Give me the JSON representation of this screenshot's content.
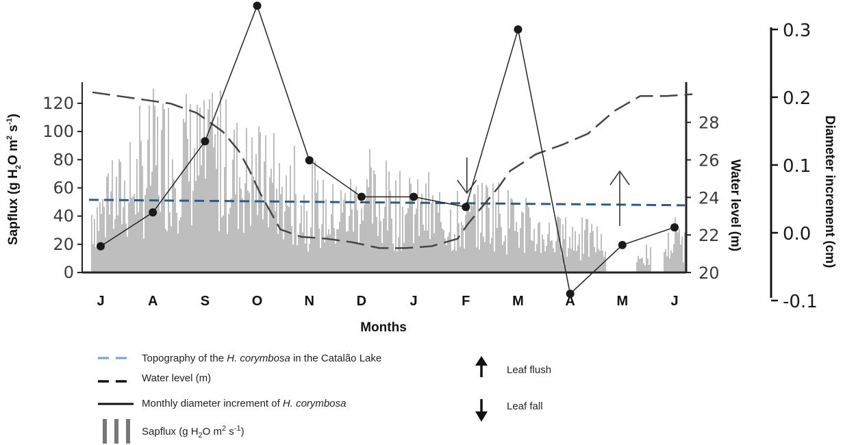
{
  "chart_data": {
    "type": "bar",
    "xlabel": "Months",
    "months": [
      "J",
      "A",
      "S",
      "O",
      "N",
      "D",
      "J",
      "F",
      "M",
      "A",
      "M",
      "J"
    ],
    "sapflux_axis": {
      "label_main": "Sapflux",
      "label_unit_pre": "(g H",
      "label_unit_sub": "2",
      "label_unit_mid": "O m",
      "label_unit_sup1": "2",
      "label_unit_s": " s",
      "label_unit_sup2": "-1",
      "label_unit_post": ")",
      "ticks": [
        "0",
        "20",
        "40",
        "60",
        "80",
        "100",
        "120"
      ],
      "ylim": [
        0,
        135
      ]
    },
    "water_axis": {
      "label": "Water level (m)",
      "ticks": [
        "20",
        "22",
        "24",
        "26",
        "28"
      ],
      "ylim": [
        20,
        29.8
      ]
    },
    "diameter_axis": {
      "label": "Diameter increment (cm)",
      "ticks": [
        "0.3",
        "0.2",
        "0.1",
        "0.0",
        "-0.1"
      ],
      "ylim": [
        -0.1,
        0.3
      ]
    },
    "sapflux_monthly_envelope": {
      "x": [
        0,
        0.8,
        1,
        1.5,
        2,
        2.5,
        3,
        3.5,
        4,
        4.5,
        5,
        5.5,
        6,
        6.5,
        7,
        7.5,
        8,
        8.5,
        9,
        9.5,
        10,
        10.5,
        11
      ],
      "y": [
        55,
        85,
        105,
        110,
        100,
        95,
        85,
        70,
        58,
        52,
        65,
        60,
        55,
        50,
        45,
        60,
        42,
        35,
        32,
        30,
        3,
        15,
        28
      ]
    },
    "water_level_series": {
      "name": "Water level (m)",
      "x": [
        0,
        0.5,
        1,
        1.5,
        2,
        2.5,
        2.8,
        3,
        3.2,
        3.4,
        3.6,
        4,
        4.5,
        5,
        5.5,
        6,
        6.5,
        7,
        7.2,
        7.5,
        7.8,
        8,
        8.5,
        9,
        9.5,
        10,
        10.5,
        11,
        11.5
      ],
      "y": [
        29.6,
        29.4,
        29.2,
        29,
        28.5,
        27.5,
        26.5,
        25.5,
        24.3,
        23.3,
        22.3,
        21.9,
        21.8,
        21.6,
        21.3,
        21.3,
        21.4,
        21.8,
        22.6,
        23.6,
        24.6,
        25.4,
        26.3,
        26.8,
        27.4,
        28.6,
        29.4,
        29.4,
        29.5
      ]
    },
    "diameter_series": {
      "name": "Monthly diameter increment of H. corymbosa",
      "x": [
        0,
        1,
        2,
        3,
        4,
        5,
        6,
        7,
        8,
        9,
        10,
        11
      ],
      "y": [
        -0.02,
        0.03,
        0.135,
        0.335,
        0.107,
        0.053,
        0.053,
        0.038,
        0.3,
        -0.09,
        -0.018,
        0.008
      ]
    },
    "topography_level_m": 23.8,
    "arrows": [
      {
        "type": "leaf-fall",
        "x": 7.02
      },
      {
        "type": "leaf-flush",
        "x": 9.95
      }
    ],
    "legend": [
      {
        "key": "topography",
        "pre": "Topography of the ",
        "italic": "H. corymbosa",
        "post": " in the Catalão Lake"
      },
      {
        "key": "water",
        "text": "Water level (m)"
      },
      {
        "key": "diameter",
        "pre": "Monthly diameter increment of ",
        "italic": "H. corymbosa",
        "post": ""
      },
      {
        "key": "sapflux",
        "pre": "Sapflux  (g H",
        "sub": "2",
        "mid": "O m",
        "sup": "2",
        "post2": " s",
        "sup2": "-1",
        "end": ")"
      }
    ],
    "legend_right": {
      "leaf_flush": "Leaf flush",
      "leaf_fall": "Leaf fall"
    },
    "colors": {
      "sapflux": "#9b9b9b",
      "topography": "#2e5b84",
      "legend_topography": "#6aa3da",
      "water": "#444444",
      "diameter": "#222222"
    }
  }
}
